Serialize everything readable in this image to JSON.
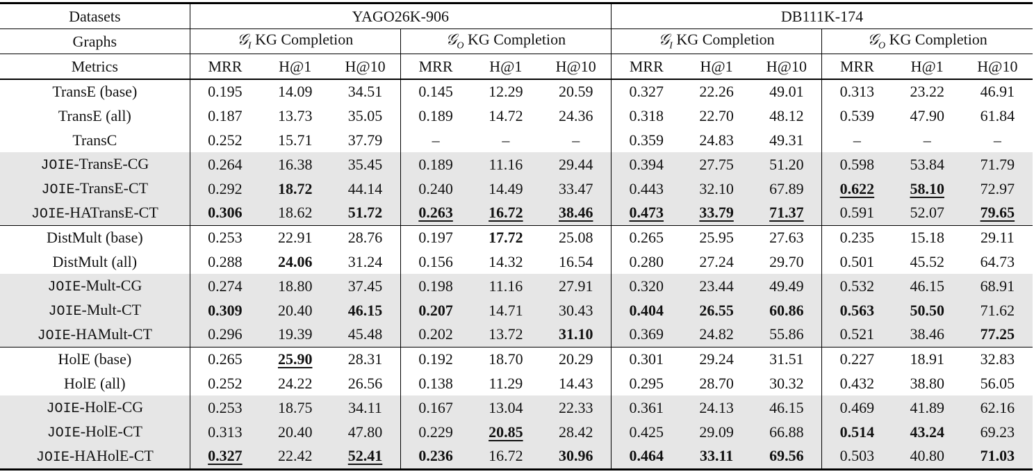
{
  "table": {
    "header": {
      "datasets": {
        "label": "Datasets",
        "groups": [
          "YAGO26K-906",
          "DB111K-174"
        ]
      },
      "graphs": {
        "label": "Graphs",
        "groups": [
          {
            "symbol": "𝒢",
            "sub": "I",
            "text": "KG Completion"
          },
          {
            "symbol": "𝒢",
            "sub": "O",
            "text": "KG Completion"
          },
          {
            "symbol": "𝒢",
            "sub": "I",
            "text": "KG Completion"
          },
          {
            "symbol": "𝒢",
            "sub": "O",
            "text": "KG Completion"
          }
        ]
      },
      "metrics": {
        "label": "Metrics",
        "names": [
          "MRR",
          "H@1",
          "H@10",
          "MRR",
          "H@1",
          "H@10",
          "MRR",
          "H@1",
          "H@10",
          "MRR",
          "H@1",
          "H@10"
        ]
      }
    },
    "sections": [
      {
        "rows": [
          {
            "label": "TransE (base)",
            "values": [
              "0.195",
              "14.09",
              "34.51",
              "0.145",
              "12.29",
              "20.59",
              "0.327",
              "22.26",
              "49.01",
              "0.313",
              "23.22",
              "46.91"
            ],
            "bold": [],
            "underline": []
          },
          {
            "label": "TransE (all)",
            "values": [
              "0.187",
              "13.73",
              "35.05",
              "0.189",
              "14.72",
              "24.36",
              "0.318",
              "22.70",
              "48.12",
              "0.539",
              "47.90",
              "61.84"
            ],
            "bold": [],
            "underline": []
          },
          {
            "label": "TransC",
            "values": [
              "0.252",
              "15.71",
              "37.79",
              "–",
              "–",
              "–",
              "0.359",
              "24.83",
              "49.31",
              "–",
              "–",
              "–"
            ],
            "bold": [],
            "underline": []
          },
          {
            "mono": "JOIE",
            "label": "-TransE-CG",
            "shaded": true,
            "values": [
              "0.264",
              "16.38",
              "35.45",
              "0.189",
              "11.16",
              "29.44",
              "0.394",
              "27.75",
              "51.20",
              "0.598",
              "53.84",
              "71.79"
            ],
            "bold": [],
            "underline": []
          },
          {
            "mono": "JOIE",
            "label": "-TransE-CT",
            "shaded": true,
            "values": [
              "0.292",
              "18.72",
              "44.14",
              "0.240",
              "14.49",
              "33.47",
              "0.443",
              "32.10",
              "67.89",
              "0.622",
              "58.10",
              "72.97"
            ],
            "bold": [
              1,
              9,
              10
            ],
            "underline": [
              9,
              10
            ]
          },
          {
            "mono": "JOIE",
            "label": "-HATransE-CT",
            "shaded": true,
            "values": [
              "0.306",
              "18.62",
              "51.72",
              "0.263",
              "16.72",
              "38.46",
              "0.473",
              "33.79",
              "71.37",
              "0.591",
              "52.07",
              "79.65"
            ],
            "bold": [
              0,
              2,
              3,
              4,
              5,
              6,
              7,
              8,
              11
            ],
            "underline": [
              3,
              4,
              5,
              6,
              7,
              8,
              11
            ]
          }
        ]
      },
      {
        "rows": [
          {
            "label": "DistMult (base)",
            "values": [
              "0.253",
              "22.91",
              "28.76",
              "0.197",
              "17.72",
              "25.08",
              "0.265",
              "25.95",
              "27.63",
              "0.235",
              "15.18",
              "29.11"
            ],
            "bold": [
              4
            ],
            "underline": []
          },
          {
            "label": "DistMult (all)",
            "values": [
              "0.288",
              "24.06",
              "31.24",
              "0.156",
              "14.32",
              "16.54",
              "0.280",
              "27.24",
              "29.70",
              "0.501",
              "45.52",
              "64.73"
            ],
            "bold": [
              1
            ],
            "underline": []
          },
          {
            "mono": "JOIE",
            "label": "-Mult-CG",
            "shaded": true,
            "values": [
              "0.274",
              "18.80",
              "37.45",
              "0.198",
              "11.16",
              "27.91",
              "0.320",
              "23.44",
              "49.49",
              "0.532",
              "46.15",
              "68.91"
            ],
            "bold": [],
            "underline": []
          },
          {
            "mono": "JOIE",
            "label": "-Mult-CT",
            "shaded": true,
            "values": [
              "0.309",
              "20.40",
              "46.15",
              "0.207",
              "14.71",
              "30.43",
              "0.404",
              "26.55",
              "60.86",
              "0.563",
              "50.50",
              "71.62"
            ],
            "bold": [
              0,
              2,
              3,
              6,
              7,
              8,
              9,
              10
            ],
            "underline": []
          },
          {
            "mono": "JOIE",
            "label": "-HAMult-CT",
            "shaded": true,
            "values": [
              "0.296",
              "19.39",
              "45.48",
              "0.202",
              "13.72",
              "31.10",
              "0.369",
              "24.82",
              "55.86",
              "0.521",
              "38.46",
              "77.25"
            ],
            "bold": [
              5,
              11
            ],
            "underline": []
          }
        ]
      },
      {
        "rows": [
          {
            "label": "HolE (base)",
            "values": [
              "0.265",
              "25.90",
              "28.31",
              "0.192",
              "18.70",
              "20.29",
              "0.301",
              "29.24",
              "31.51",
              "0.227",
              "18.91",
              "32.83"
            ],
            "bold": [
              1
            ],
            "underline": [
              1
            ]
          },
          {
            "label": "HolE (all)",
            "values": [
              "0.252",
              "24.22",
              "26.56",
              "0.138",
              "11.29",
              "14.43",
              "0.295",
              "28.70",
              "30.32",
              "0.432",
              "38.80",
              "56.05"
            ],
            "bold": [],
            "underline": []
          },
          {
            "mono": "JOIE",
            "label": "-HolE-CG",
            "shaded": true,
            "values": [
              "0.253",
              "18.75",
              "34.11",
              "0.167",
              "13.04",
              "22.33",
              "0.361",
              "24.13",
              "46.15",
              "0.469",
              "41.89",
              "62.16"
            ],
            "bold": [],
            "underline": []
          },
          {
            "mono": "JOIE",
            "label": "-HolE-CT",
            "shaded": true,
            "values": [
              "0.313",
              "20.40",
              "47.80",
              "0.229",
              "20.85",
              "28.42",
              "0.425",
              "29.09",
              "66.88",
              "0.514",
              "43.24",
              "69.23"
            ],
            "bold": [
              4,
              9,
              10
            ],
            "underline": [
              4
            ]
          },
          {
            "mono": "JOIE",
            "label": "-HAHolE-CT",
            "shaded": true,
            "values": [
              "0.327",
              "22.42",
              "52.41",
              "0.236",
              "16.72",
              "30.96",
              "0.464",
              "33.11",
              "69.56",
              "0.503",
              "40.80",
              "71.03"
            ],
            "bold": [
              0,
              2,
              3,
              5,
              6,
              7,
              8,
              11
            ],
            "underline": [
              0,
              2
            ]
          }
        ]
      }
    ]
  }
}
